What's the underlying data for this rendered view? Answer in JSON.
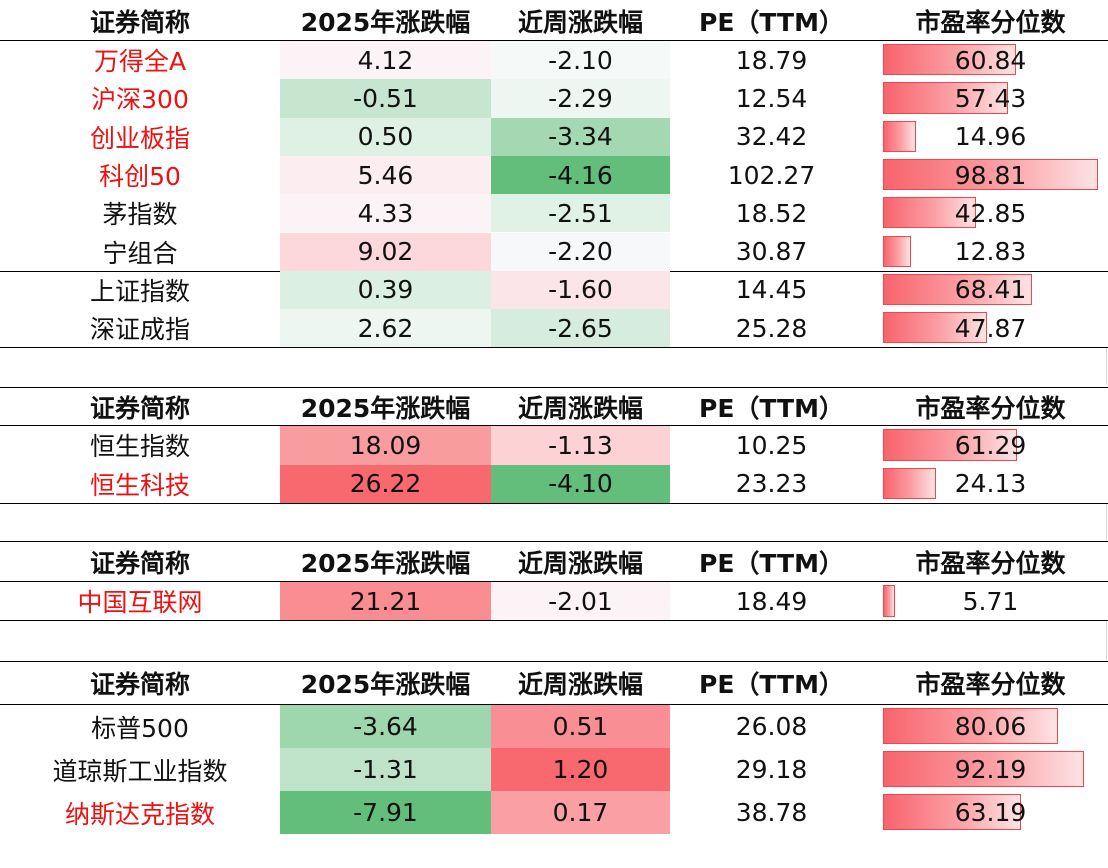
{
  "headers": [
    "证券简称",
    "2025年涨跌幅",
    "近周涨跌幅",
    "PE（TTM）",
    "市盈率分位数"
  ],
  "name_red_color": "#ee1111",
  "sections": [
    {
      "rows": [
        {
          "name": "万得全A",
          "red": true,
          "ytd": "4.12",
          "wk": "-2.10",
          "pe": "18.79",
          "pct": "60.84",
          "ytd_bg": "#fcf3f6",
          "wk_bg": "#f5f9f7"
        },
        {
          "name": "沪深300",
          "red": true,
          "ytd": "-0.51",
          "wk": "-2.29",
          "pe": "12.54",
          "pct": "57.43",
          "ytd_bg": "#c6e6d0",
          "wk_bg": "#eef6f1"
        },
        {
          "name": "创业板指",
          "red": true,
          "ytd": "0.50",
          "wk": "-3.34",
          "pe": "32.42",
          "pct": "14.96",
          "ytd_bg": "#dff0e5",
          "wk_bg": "#a3d8b2"
        },
        {
          "name": "科创50",
          "red": true,
          "ytd": "5.46",
          "wk": "-4.16",
          "pe": "102.27",
          "pct": "98.81",
          "ytd_bg": "#fcedf0",
          "wk_bg": "#63be7b"
        },
        {
          "name": "茅指数",
          "red": false,
          "ytd": "4.33",
          "wk": "-2.51",
          "pe": "18.52",
          "pct": "42.85",
          "ytd_bg": "#fcf3f6",
          "wk_bg": "#e0f1e6"
        },
        {
          "name": "宁组合",
          "red": false,
          "ytd": "9.02",
          "wk": "-2.20",
          "pe": "30.87",
          "pct": "12.83",
          "ytd_bg": "#fcd7db",
          "wk_bg": "#f6f8fa"
        },
        {
          "name": "上证指数",
          "red": false,
          "ytd": "0.39",
          "wk": "-1.60",
          "pe": "14.45",
          "pct": "68.41",
          "ytd_bg": "#dbefe2",
          "wk_bg": "#fce5e8"
        },
        {
          "name": "深证成指",
          "red": false,
          "ytd": "2.62",
          "wk": "-2.65",
          "pe": "25.28",
          "pct": "47.87",
          "ytd_bg": "#eef6f2",
          "wk_bg": "#d6ecde"
        }
      ]
    },
    {
      "rows": [
        {
          "name": "恒生指数",
          "red": false,
          "ytd": "18.09",
          "wk": "-1.13",
          "pe": "10.25",
          "pct": "61.29",
          "ytd_bg": "#f99ca0",
          "wk_bg": "#fcd2d5"
        },
        {
          "name": "恒生科技",
          "red": true,
          "ytd": "26.22",
          "wk": "-4.10",
          "pe": "23.23",
          "pct": "24.13",
          "ytd_bg": "#f8696f",
          "wk_bg": "#63be7b"
        }
      ]
    },
    {
      "rows": [
        {
          "name": "中国互联网",
          "red": true,
          "ytd": "21.21",
          "wk": "-2.01",
          "pe": "18.49",
          "pct": "5.71",
          "ytd_bg": "#f98d92",
          "wk_bg": "#fcf3f6"
        }
      ]
    },
    {
      "rows": [
        {
          "name": "标普500",
          "red": false,
          "ytd": "-3.64",
          "wk": "0.51",
          "pe": "26.08",
          "pct": "80.06",
          "ytd_bg": "#9ed6ad",
          "wk_bg": "#f98f94"
        },
        {
          "name": "道琼斯工业指数",
          "red": false,
          "ytd": "-1.31",
          "wk": "1.20",
          "pe": "29.18",
          "pct": "92.19",
          "ytd_bg": "#bfe3c9",
          "wk_bg": "#f8696f"
        },
        {
          "name": "纳斯达克指数",
          "red": true,
          "ytd": "-7.91",
          "wk": "0.17",
          "pe": "38.78",
          "pct": "63.19",
          "ytd_bg": "#63be7b",
          "wk_bg": "#fa9fa4"
        }
      ]
    }
  ]
}
